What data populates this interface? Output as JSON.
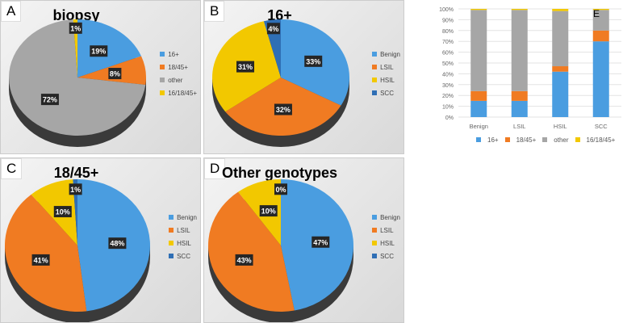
{
  "chart_data": [
    {
      "type": "pie",
      "panel": "A",
      "title": "biopsy",
      "categories": [
        "16+",
        "18/45+",
        "other",
        "16/18/45+"
      ],
      "values": [
        19,
        8,
        72,
        1
      ],
      "labels": [
        "19%",
        "8%",
        "72%",
        "1%"
      ],
      "colors": [
        "#4a9de0",
        "#f07b22",
        "#a6a6a6",
        "#f2c800"
      ],
      "legend": "right"
    },
    {
      "type": "pie",
      "panel": "B",
      "title": "16+",
      "categories": [
        "Benign",
        "LSIL",
        "HSIL",
        "SCC"
      ],
      "values": [
        33,
        32,
        31,
        4
      ],
      "labels": [
        "33%",
        "32%",
        "31%",
        "4%"
      ],
      "colors": [
        "#4a9de0",
        "#f07b22",
        "#f2c800",
        "#2f6fb5"
      ],
      "legend": "right"
    },
    {
      "type": "pie",
      "panel": "C",
      "title": "18/45+",
      "categories": [
        "Benign",
        "LSIL",
        "HSIL",
        "SCC"
      ],
      "values": [
        48,
        41,
        10,
        1
      ],
      "labels": [
        "48%",
        "41%",
        "10%",
        "1%"
      ],
      "colors": [
        "#4a9de0",
        "#f07b22",
        "#f2c800",
        "#2f6fb5"
      ],
      "legend": "right"
    },
    {
      "type": "pie",
      "panel": "D",
      "title": "Other genotypes",
      "categories": [
        "Benign",
        "LSIL",
        "HSIL",
        "SCC"
      ],
      "values": [
        47,
        43,
        10,
        0
      ],
      "labels": [
        "47%",
        "43%",
        "10%",
        "0%"
      ],
      "colors": [
        "#4a9de0",
        "#f07b22",
        "#f2c800",
        "#2f6fb5"
      ],
      "legend": "right"
    },
    {
      "type": "bar",
      "stacked": true,
      "panel": "E",
      "categories": [
        "Benign",
        "LSIL",
        "HSIL",
        "SCC"
      ],
      "series": [
        {
          "name": "16+",
          "color": "#4a9de0",
          "values": [
            15,
            15,
            42,
            70
          ]
        },
        {
          "name": "18/45+",
          "color": "#f07b22",
          "values": [
            9,
            9,
            5,
            10
          ]
        },
        {
          "name": "other",
          "color": "#a6a6a6",
          "values": [
            75,
            75,
            51,
            19
          ]
        },
        {
          "name": "16/18/45+",
          "color": "#f2c800",
          "values": [
            1,
            1,
            2,
            1
          ]
        }
      ],
      "yticks": [
        "0%",
        "10%",
        "20%",
        "30%",
        "40%",
        "50%",
        "60%",
        "70%",
        "80%",
        "90%",
        "100%"
      ],
      "ylim": [
        0,
        100
      ],
      "legend": "bottom",
      "grid": true
    }
  ]
}
